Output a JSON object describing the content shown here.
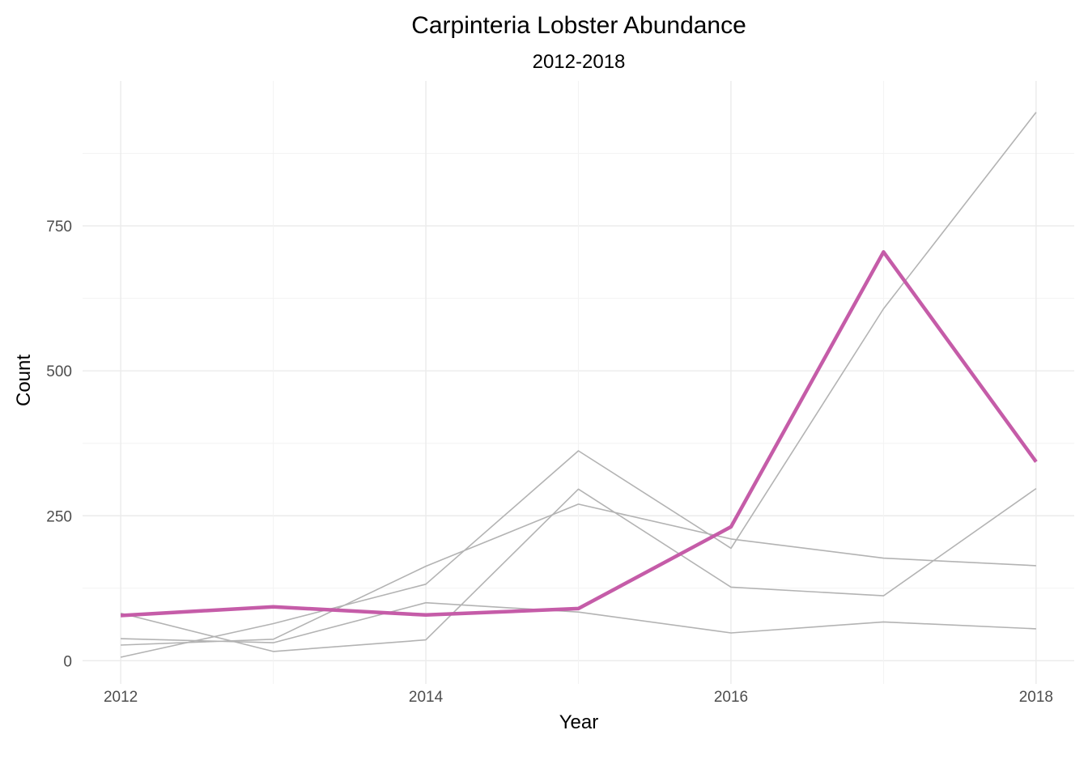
{
  "chart_data": {
    "type": "line",
    "title": "Carpinteria Lobster Abundance",
    "subtitle": "2012-2018",
    "xlabel": "Year",
    "ylabel": "Count",
    "x": [
      2012,
      2013,
      2014,
      2015,
      2016,
      2017,
      2018
    ],
    "x_ticks": [
      2012,
      2014,
      2016,
      2018
    ],
    "y_ticks": [
      0,
      250,
      500,
      750
    ],
    "xlim": [
      2011.75,
      2018.25
    ],
    "ylim": [
      -40,
      1000
    ],
    "grid": true,
    "legend": "none",
    "colors": {
      "highlight": "#c55ca8",
      "other": "#b3b3b3"
    },
    "series": [
      {
        "values": [
          78,
          93,
          79,
          90,
          231,
          705,
          343
        ],
        "highlight": true
      },
      {
        "values": [
          6,
          64,
          132,
          362,
          194,
          607,
          946
        ],
        "highlight": false
      },
      {
        "values": [
          27,
          37,
          163,
          270,
          210,
          177,
          164
        ],
        "highlight": false
      },
      {
        "values": [
          82,
          16,
          36,
          296,
          127,
          112,
          297
        ],
        "highlight": false
      },
      {
        "values": [
          38,
          31,
          100,
          84,
          48,
          67,
          55
        ],
        "highlight": false
      }
    ]
  }
}
